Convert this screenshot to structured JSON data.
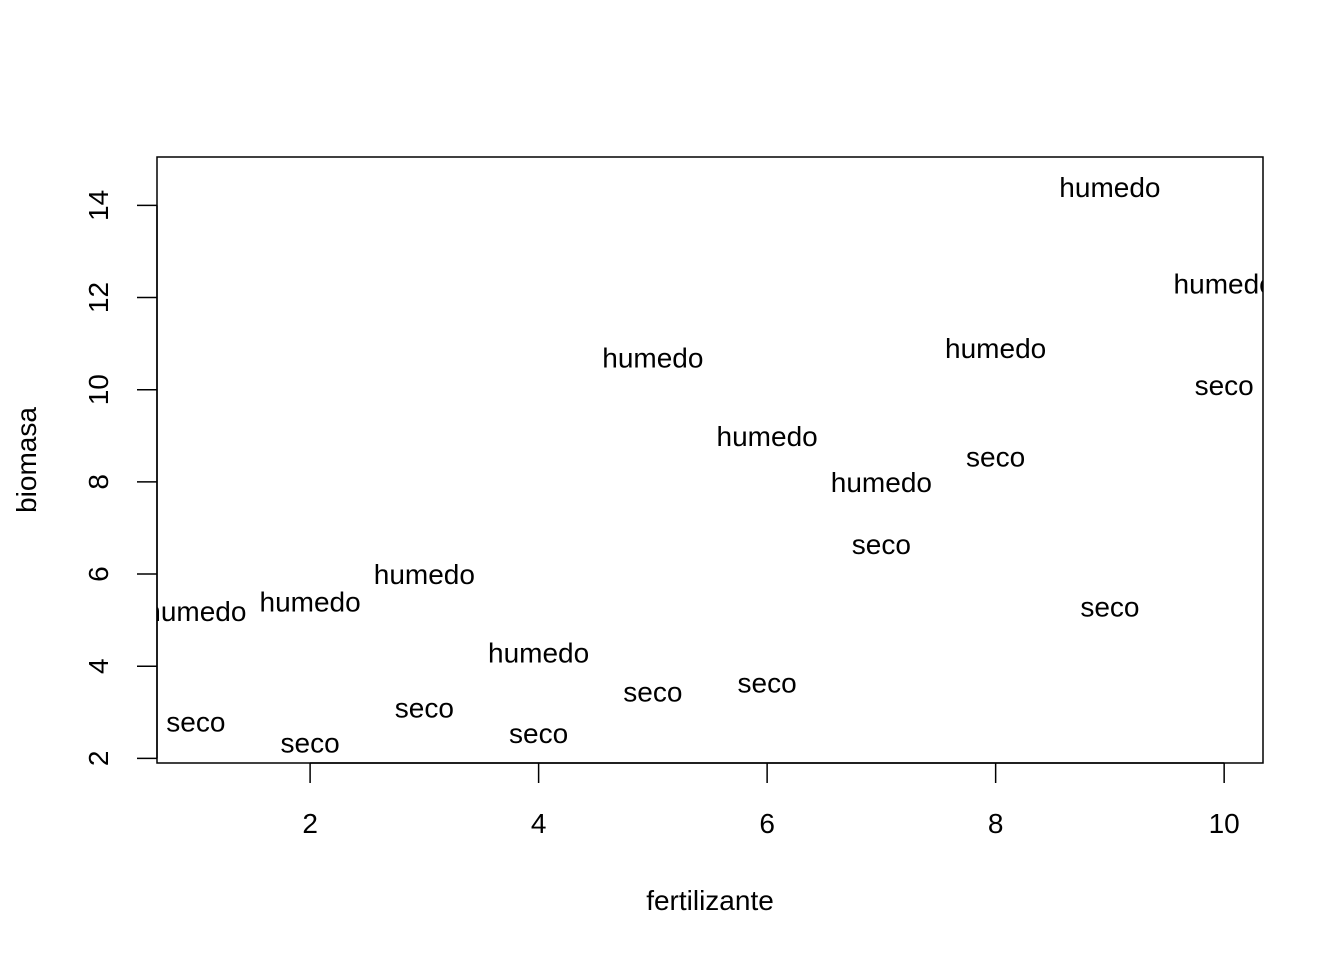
{
  "chart_data": {
    "type": "scatter",
    "title": "",
    "xlabel": "fertilizante",
    "ylabel": "biomasa",
    "xlim": [
      0.66,
      10.34
    ],
    "ylim": [
      1.9,
      15.05
    ],
    "xticks": [
      2,
      4,
      6,
      8,
      10
    ],
    "yticks": [
      2,
      4,
      6,
      8,
      10,
      12,
      14
    ],
    "grid": false,
    "legend": "none",
    "points": [
      {
        "x": 1,
        "y": 5.2,
        "label": "humedo"
      },
      {
        "x": 2,
        "y": 5.4,
        "label": "humedo"
      },
      {
        "x": 3,
        "y": 6.0,
        "label": "humedo"
      },
      {
        "x": 4,
        "y": 4.3,
        "label": "humedo"
      },
      {
        "x": 5,
        "y": 10.7,
        "label": "humedo"
      },
      {
        "x": 6,
        "y": 9.0,
        "label": "humedo"
      },
      {
        "x": 7,
        "y": 8.0,
        "label": "humedo"
      },
      {
        "x": 8,
        "y": 10.9,
        "label": "humedo"
      },
      {
        "x": 9,
        "y": 14.4,
        "label": "humedo"
      },
      {
        "x": 10,
        "y": 12.3,
        "label": "humedo"
      },
      {
        "x": 1,
        "y": 2.8,
        "label": "seco"
      },
      {
        "x": 2,
        "y": 2.35,
        "label": "seco"
      },
      {
        "x": 3,
        "y": 3.1,
        "label": "seco"
      },
      {
        "x": 4,
        "y": 2.55,
        "label": "seco"
      },
      {
        "x": 5,
        "y": 3.45,
        "label": "seco"
      },
      {
        "x": 6,
        "y": 3.65,
        "label": "seco"
      },
      {
        "x": 7,
        "y": 6.65,
        "label": "seco"
      },
      {
        "x": 8,
        "y": 8.55,
        "label": "seco"
      },
      {
        "x": 9,
        "y": 5.3,
        "label": "seco"
      },
      {
        "x": 10,
        "y": 10.1,
        "label": "seco"
      }
    ]
  }
}
